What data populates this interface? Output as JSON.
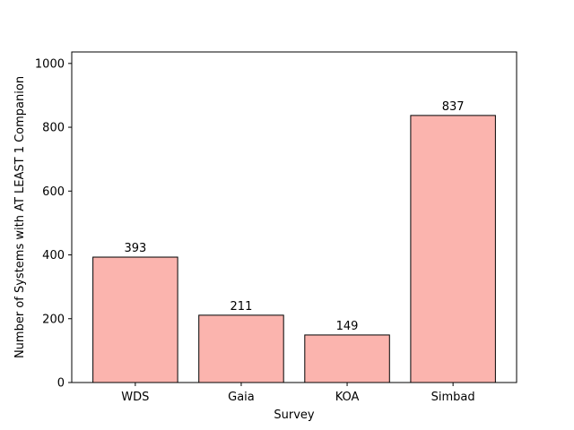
{
  "chart_data": {
    "type": "bar",
    "title": "",
    "xlabel": "Survey",
    "ylabel": "Number of Systems with AT LEAST 1 Companion",
    "categories": [
      "WDS",
      "Gaia",
      "KOA",
      "Simbad"
    ],
    "values": [
      393,
      211,
      149,
      837
    ],
    "data_labels": [
      "393",
      "211",
      "149",
      "837"
    ],
    "ylim": [
      0,
      1036
    ],
    "yticks": [
      0,
      200,
      400,
      600,
      800,
      1000
    ],
    "grid": false,
    "legend": "none",
    "bar_color": "#fbb4ae",
    "edge_color": "#000000"
  }
}
